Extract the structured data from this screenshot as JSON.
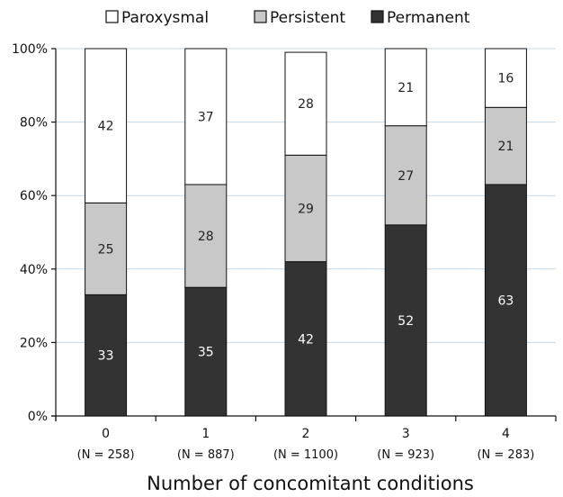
{
  "chart_data": {
    "type": "bar",
    "stacked": true,
    "categories": [
      "0",
      "1",
      "2",
      "3",
      "4"
    ],
    "category_sublabels": [
      "(N = 258)",
      "(N = 887)",
      "(N = 1100)",
      "(N = 923)",
      "(N = 283)"
    ],
    "series": [
      {
        "name": "Permanent",
        "values": [
          33,
          35,
          42,
          52,
          63
        ],
        "color": "#333333",
        "label_color": "#ffffff"
      },
      {
        "name": "Persistent",
        "values": [
          25,
          28,
          29,
          27,
          21
        ],
        "color": "#c8c8c8",
        "label_color": "#222222"
      },
      {
        "name": "Paroxysmal",
        "values": [
          42,
          37,
          28,
          21,
          16
        ],
        "color": "#ffffff",
        "label_color": "#222222"
      }
    ],
    "legend_order": [
      "Paroxysmal",
      "Persistent",
      "Permanent"
    ],
    "legend_position": "top",
    "xlabel": "Number of concomitant conditions",
    "ylabel": "",
    "ylim": [
      0,
      100
    ],
    "yticks": [
      0,
      20,
      40,
      60,
      80,
      100
    ],
    "ytick_labels": [
      "0%",
      "20%",
      "40%",
      "60%",
      "80%",
      "100%"
    ],
    "grid": "horizontal",
    "grid_color": "#c5d9e8"
  }
}
